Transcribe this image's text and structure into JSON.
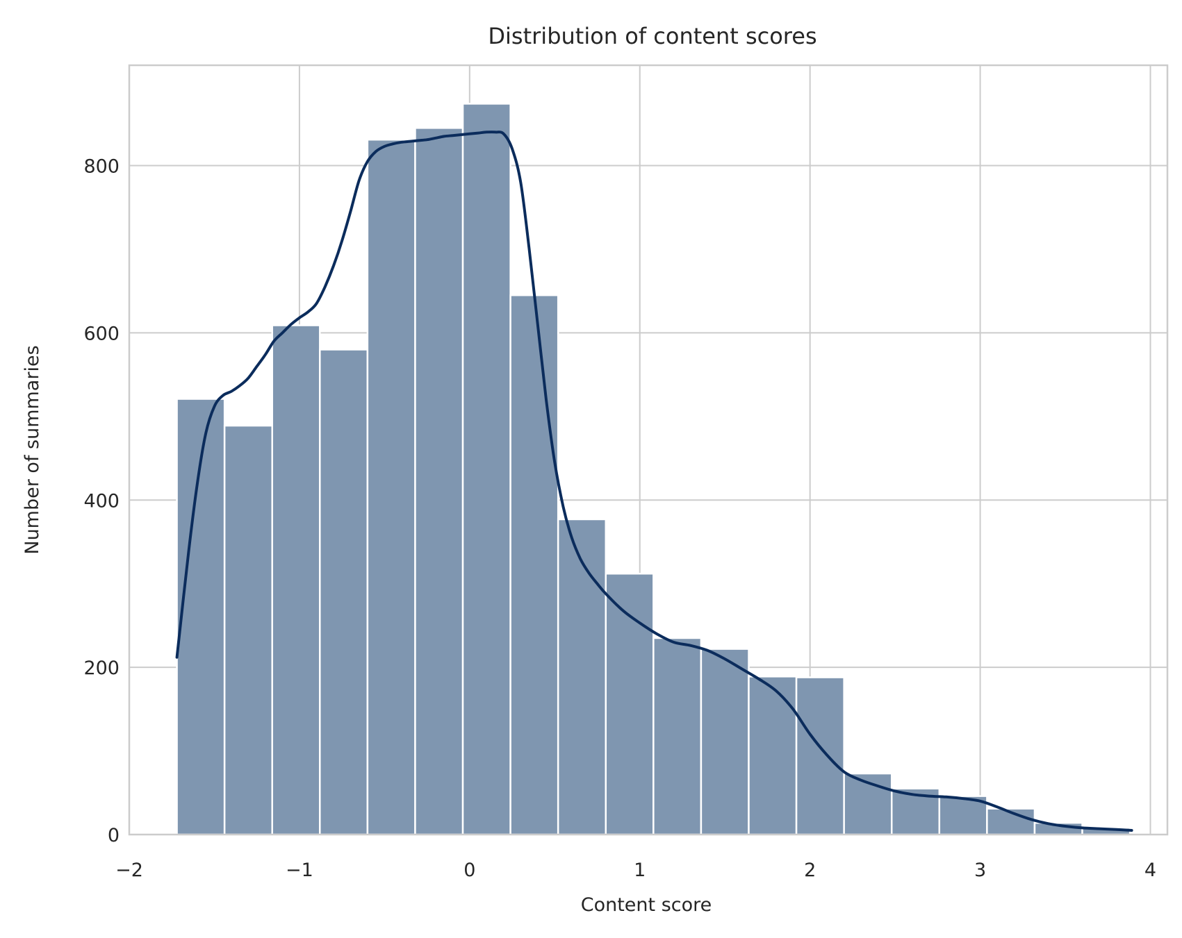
{
  "chart_data": {
    "type": "bar",
    "title": "Distribution of content scores",
    "xlabel": "Content score",
    "ylabel": "Number of summaries",
    "xlim": [
      -2.0,
      4.1
    ],
    "ylim": [
      0,
      920
    ],
    "xticks": [
      -2,
      -1,
      0,
      1,
      2,
      3,
      4
    ],
    "xtick_labels": [
      "−2",
      "−1",
      "0",
      "1",
      "2",
      "3",
      "4"
    ],
    "yticks": [
      0,
      200,
      400,
      600,
      800
    ],
    "ytick_labels": [
      "0",
      "200",
      "400",
      "600",
      "800"
    ],
    "grid": true,
    "bar_color": "#7f96b0",
    "kde_color": "#0b2c5c",
    "bins": [
      {
        "x0": -1.72,
        "x1": -1.44,
        "count": 521
      },
      {
        "x0": -1.44,
        "x1": -1.16,
        "count": 489
      },
      {
        "x0": -1.16,
        "x1": -0.88,
        "count": 609
      },
      {
        "x0": -0.88,
        "x1": -0.6,
        "count": 580
      },
      {
        "x0": -0.6,
        "x1": -0.32,
        "count": 831
      },
      {
        "x0": -0.32,
        "x1": -0.04,
        "count": 845
      },
      {
        "x0": -0.04,
        "x1": 0.24,
        "count": 874
      },
      {
        "x0": 0.24,
        "x1": 0.52,
        "count": 645
      },
      {
        "x0": 0.52,
        "x1": 0.8,
        "count": 377
      },
      {
        "x0": 0.8,
        "x1": 1.08,
        "count": 312
      },
      {
        "x0": 1.08,
        "x1": 1.36,
        "count": 235
      },
      {
        "x0": 1.36,
        "x1": 1.64,
        "count": 222
      },
      {
        "x0": 1.64,
        "x1": 1.92,
        "count": 189
      },
      {
        "x0": 1.92,
        "x1": 2.2,
        "count": 188
      },
      {
        "x0": 2.2,
        "x1": 2.48,
        "count": 73
      },
      {
        "x0": 2.48,
        "x1": 2.76,
        "count": 55
      },
      {
        "x0": 2.76,
        "x1": 3.04,
        "count": 46
      },
      {
        "x0": 3.04,
        "x1": 3.32,
        "count": 31
      },
      {
        "x0": 3.32,
        "x1": 3.6,
        "count": 14
      },
      {
        "x0": 3.6,
        "x1": 3.88,
        "count": 8
      }
    ],
    "kde": {
      "x": [
        -1.72,
        -1.65,
        -1.6,
        -1.55,
        -1.5,
        -1.45,
        -1.4,
        -1.35,
        -1.3,
        -1.25,
        -1.2,
        -1.15,
        -1.1,
        -1.05,
        -1.0,
        -0.95,
        -0.9,
        -0.85,
        -0.8,
        -0.75,
        -0.7,
        -0.65,
        -0.6,
        -0.55,
        -0.5,
        -0.45,
        -0.4,
        -0.35,
        -0.3,
        -0.25,
        -0.2,
        -0.15,
        -0.1,
        -0.05,
        0.0,
        0.05,
        0.1,
        0.15,
        0.2,
        0.25,
        0.3,
        0.35,
        0.4,
        0.45,
        0.5,
        0.55,
        0.6,
        0.65,
        0.7,
        0.75,
        0.8,
        0.9,
        1.0,
        1.1,
        1.2,
        1.3,
        1.4,
        1.5,
        1.6,
        1.7,
        1.8,
        1.9,
        2.0,
        2.1,
        2.2,
        2.3,
        2.4,
        2.5,
        2.6,
        2.7,
        2.8,
        2.9,
        3.0,
        3.1,
        3.2,
        3.3,
        3.4,
        3.5,
        3.6,
        3.7,
        3.8,
        3.89
      ],
      "y": [
        212,
        340,
        420,
        480,
        512,
        525,
        530,
        537,
        546,
        560,
        574,
        590,
        600,
        610,
        618,
        625,
        635,
        655,
        680,
        710,
        745,
        782,
        805,
        817,
        823,
        826,
        828,
        829,
        830,
        831,
        833,
        835,
        836,
        837,
        838,
        839,
        840,
        840,
        838,
        820,
        780,
        700,
        610,
        520,
        445,
        392,
        355,
        330,
        313,
        300,
        288,
        268,
        253,
        240,
        230,
        226,
        220,
        210,
        198,
        186,
        172,
        150,
        120,
        95,
        75,
        65,
        58,
        52,
        48,
        46,
        45,
        43,
        40,
        33,
        25,
        18,
        13,
        10,
        8,
        7,
        6,
        5
      ]
    }
  }
}
